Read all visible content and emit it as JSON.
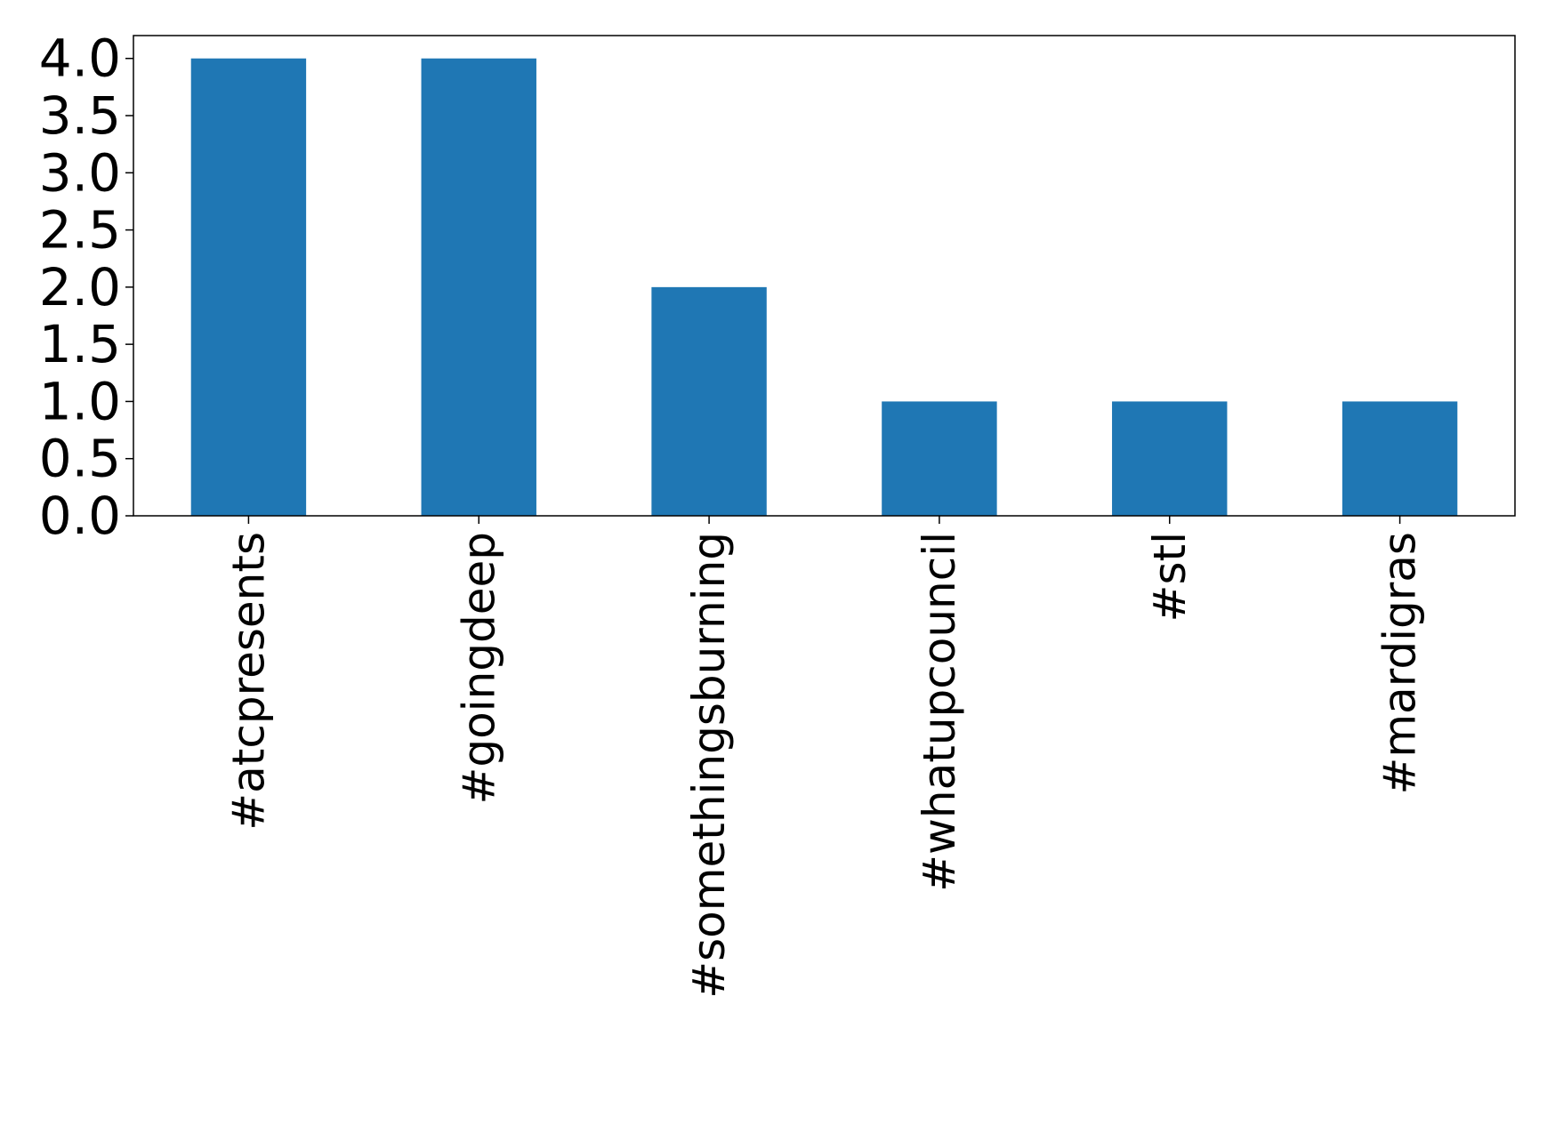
{
  "chart_data": {
    "type": "bar",
    "categories": [
      "#atcpresents",
      "#goingdeep",
      "#somethingsburning",
      "#whatupcouncil",
      "#stl",
      "#mardigras"
    ],
    "values": [
      4,
      4,
      2,
      1,
      1,
      1
    ],
    "ylim": [
      0,
      4.2
    ],
    "yticks": [
      "0.0",
      "0.5",
      "1.0",
      "1.5",
      "2.0",
      "2.5",
      "3.0",
      "3.5",
      "4.0"
    ],
    "title": "",
    "xlabel": "",
    "ylabel": "",
    "grid": false,
    "legend": "none",
    "bar_color": "#1f77b4"
  }
}
